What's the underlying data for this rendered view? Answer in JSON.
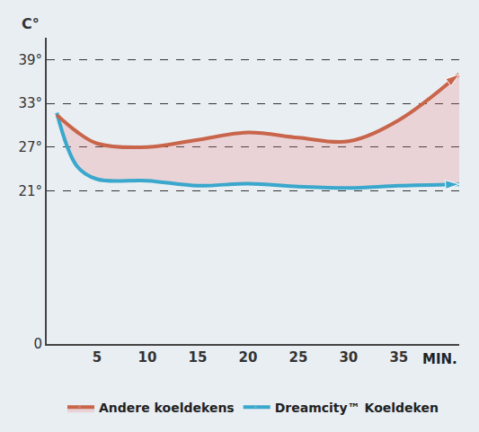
{
  "chart_data": {
    "type": "line",
    "x_label": "MIN.",
    "y_label": "C°",
    "x": [
      1,
      3,
      5,
      10,
      15,
      20,
      25,
      30,
      35,
      41
    ],
    "series": [
      {
        "name": "Dreamcity™ Koeldeken",
        "color": "#3aa7cc",
        "marker": "arrow",
        "values": [
          31.7,
          24.4,
          22.6,
          22.4,
          21.7,
          22,
          21.6,
          21.4,
          21.7,
          21.9
        ]
      },
      {
        "name": "Andere koeldekens",
        "color": "#c8654a",
        "marker": "arrow",
        "values": [
          31.4,
          29.1,
          27.5,
          27,
          28,
          29,
          28.3,
          27.8,
          30.7,
          37
        ]
      }
    ],
    "xlim": [
      0,
      41
    ],
    "xticks": [
      5,
      10,
      15,
      20,
      25,
      30,
      35
    ],
    "ylim": [
      0,
      42
    ],
    "yticks": [
      0,
      {
        "value": 21,
        "label": "21°"
      },
      {
        "value": 27,
        "label": "27°"
      },
      {
        "value": 33,
        "label": "33°"
      },
      {
        "value": 39,
        "label": "39°"
      }
    ],
    "grid": true,
    "legend": "bottom"
  }
}
